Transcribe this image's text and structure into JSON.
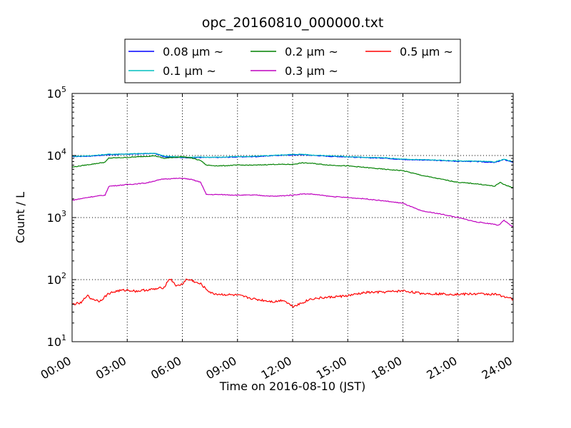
{
  "chart_data": {
    "type": "line",
    "title": "opc_20160810_000000.txt",
    "xlabel": "Time on 2016-08-10 (JST)",
    "ylabel": "Count / L",
    "x_unit": "hours",
    "xlim": [
      0,
      24
    ],
    "ylim": [
      10,
      100000
    ],
    "yscale": "log",
    "grid": true,
    "legend_position": "top-center",
    "xticks": [
      {
        "x": 0,
        "label": "00:00"
      },
      {
        "x": 3,
        "label": "03:00"
      },
      {
        "x": 6,
        "label": "06:00"
      },
      {
        "x": 9,
        "label": "09:00"
      },
      {
        "x": 12,
        "label": "12:00"
      },
      {
        "x": 15,
        "label": "15:00"
      },
      {
        "x": 18,
        "label": "18:00"
      },
      {
        "x": 21,
        "label": "21:00"
      },
      {
        "x": 24,
        "label": "24:00"
      }
    ],
    "yticks": [
      {
        "y": 10,
        "base": "10",
        "exp": "1"
      },
      {
        "y": 100,
        "base": "10",
        "exp": "2"
      },
      {
        "y": 1000,
        "base": "10",
        "exp": "3"
      },
      {
        "y": 10000,
        "base": "10",
        "exp": "4"
      },
      {
        "y": 100000,
        "base": "10",
        "exp": "5"
      }
    ],
    "series": [
      {
        "name": "0.08 μm ~",
        "color": "#0000ff",
        "x": [
          0,
          1,
          2,
          3,
          4,
          4.5,
          5,
          6,
          7,
          8,
          9,
          10,
          11,
          12,
          12.5,
          13,
          14,
          15,
          16,
          17,
          18,
          19,
          20,
          21,
          22,
          23,
          23.5,
          24
        ],
        "y": [
          9600,
          9800,
          10300,
          10500,
          10700,
          10800,
          9600,
          9200,
          9300,
          9300,
          9500,
          9600,
          10000,
          10200,
          10300,
          10100,
          9700,
          9500,
          9200,
          9100,
          8600,
          8500,
          8300,
          8100,
          8000,
          7700,
          8600,
          7800
        ]
      },
      {
        "name": "0.1 μm ~",
        "color": "#00bfbf",
        "x": [
          0,
          1,
          2,
          3,
          4,
          4.5,
          5,
          6,
          7,
          8,
          9,
          10,
          11,
          12,
          12.5,
          13,
          14,
          15,
          16,
          17,
          18,
          19,
          20,
          21,
          22,
          23,
          23.5,
          24
        ],
        "y": [
          9700,
          9900,
          10500,
          10600,
          10800,
          10900,
          9800,
          9400,
          9400,
          9400,
          9600,
          9700,
          10100,
          10400,
          10500,
          10200,
          9900,
          9600,
          9300,
          9200,
          8700,
          8600,
          8400,
          8200,
          8100,
          7900,
          8700,
          7900
        ]
      },
      {
        "name": "0.2 μm ~",
        "color": "#008000",
        "x": [
          0,
          1,
          1.8,
          2,
          3,
          4,
          4.5,
          5,
          6,
          6.5,
          7,
          7.3,
          8,
          9,
          10,
          11,
          12,
          12.5,
          13,
          14,
          15,
          16,
          17,
          18,
          19,
          20,
          21,
          22,
          23,
          23.3,
          23.6,
          24
        ],
        "y": [
          6500,
          7200,
          7800,
          9100,
          9300,
          9700,
          9900,
          9000,
          9600,
          9100,
          8300,
          7000,
          6800,
          7000,
          7000,
          7200,
          7200,
          7600,
          7500,
          7000,
          6800,
          6400,
          6000,
          5700,
          4800,
          4200,
          3700,
          3500,
          3200,
          3700,
          3300,
          3050
        ]
      },
      {
        "name": "0.3 μm ~",
        "color": "#bf00bf",
        "x": [
          0,
          1,
          1.8,
          2,
          3,
          4,
          4.5,
          5,
          6,
          6.5,
          7,
          7.3,
          8,
          9,
          10,
          11,
          12,
          12.5,
          13,
          14,
          15,
          16,
          17,
          18,
          19,
          20,
          21,
          22,
          23,
          23.2,
          23.5,
          24
        ],
        "y": [
          1900,
          2150,
          2300,
          3200,
          3400,
          3600,
          3900,
          4200,
          4300,
          4100,
          3700,
          2350,
          2350,
          2300,
          2300,
          2200,
          2300,
          2400,
          2400,
          2200,
          2100,
          2000,
          1850,
          1700,
          1280,
          1150,
          1000,
          850,
          780,
          750,
          900,
          700
        ]
      },
      {
        "name": "0.5 μm ~",
        "color": "#ff0000",
        "x": [
          0,
          0.5,
          0.8,
          1,
          1.5,
          2,
          2.5,
          3,
          3.5,
          4,
          4.5,
          5,
          5.3,
          5.5,
          5.7,
          6,
          6.2,
          6.5,
          6.8,
          7,
          7.3,
          7.6,
          8,
          9,
          10,
          11,
          11.5,
          12,
          12.5,
          13,
          14,
          15,
          16,
          17,
          18,
          19,
          20,
          21,
          22,
          23,
          23.5,
          24
        ],
        "y": [
          40,
          42,
          56,
          50,
          45,
          60,
          66,
          68,
          65,
          68,
          70,
          75,
          104,
          92,
          78,
          85,
          100,
          98,
          88,
          85,
          70,
          60,
          58,
          56,
          48,
          44,
          47,
          37,
          42,
          49,
          52,
          55,
          62,
          63,
          66,
          60,
          59,
          58,
          59,
          58,
          54,
          48
        ]
      }
    ]
  }
}
